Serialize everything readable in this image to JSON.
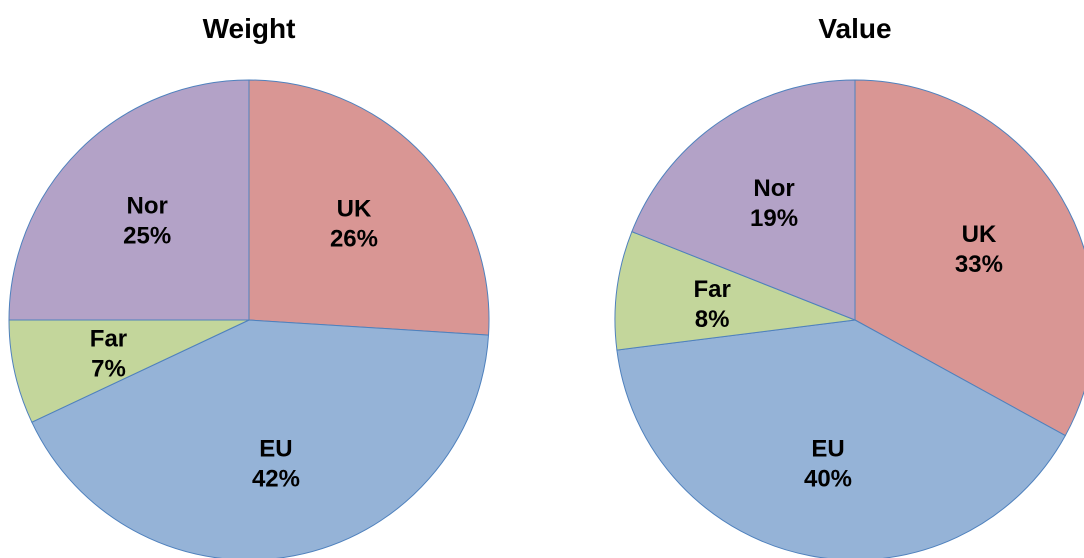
{
  "chart_data": [
    {
      "type": "pie",
      "title": "Weight",
      "categories": [
        "UK",
        "EU",
        "Far",
        "Nor"
      ],
      "values": [
        26,
        42,
        7,
        25
      ],
      "value_labels": [
        "26%",
        "42%",
        "7%",
        "25%"
      ],
      "colors": [
        "#d99694",
        "#95b3d7",
        "#c3d69b",
        "#b3a2c7"
      ]
    },
    {
      "type": "pie",
      "title": "Value",
      "categories": [
        "UK",
        "EU",
        "Far",
        "Nor"
      ],
      "values": [
        33,
        40,
        8,
        19
      ],
      "value_labels": [
        "33%",
        "40%",
        "8%",
        "19%"
      ],
      "colors": [
        "#d99694",
        "#95b3d7",
        "#c3d69b",
        "#b3a2c7"
      ]
    }
  ]
}
